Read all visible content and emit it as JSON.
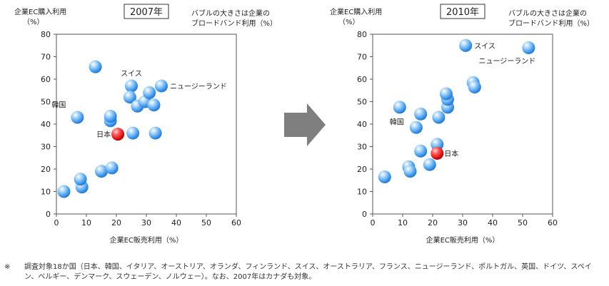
{
  "arrow_color": "#7f7f7f",
  "bubble_color": "#4aa3f0",
  "highlight_color": "#e01010",
  "chart_data": [
    {
      "type": "scatter",
      "title": "2007年",
      "ylabel": "企業EC購入利用\n（%）",
      "xlabel": "企業EC販売利用（%）",
      "size_note": "バブルの大きさは企業の\nブロードバンド利用（%）",
      "xlim": [
        0,
        60
      ],
      "ylim": [
        0,
        80
      ],
      "xticks": [
        0,
        10,
        20,
        30,
        40,
        50,
        60
      ],
      "yticks": [
        0,
        10,
        20,
        30,
        40,
        50,
        60,
        70,
        80
      ],
      "grid": false,
      "points": [
        {
          "x": 2.5,
          "y": 10,
          "label": ""
        },
        {
          "x": 8.5,
          "y": 12,
          "label": ""
        },
        {
          "x": 8,
          "y": 15.5,
          "label": ""
        },
        {
          "x": 15,
          "y": 19,
          "label": ""
        },
        {
          "x": 18.5,
          "y": 20.5,
          "label": ""
        },
        {
          "x": 7,
          "y": 43,
          "label": "韓国"
        },
        {
          "x": 13,
          "y": 65.5,
          "label": ""
        },
        {
          "x": 18,
          "y": 41.5,
          "label": ""
        },
        {
          "x": 18,
          "y": 43.5,
          "label": ""
        },
        {
          "x": 20.5,
          "y": 35.5,
          "label": "日本",
          "highlight": true
        },
        {
          "x": 25.5,
          "y": 36,
          "label": ""
        },
        {
          "x": 33,
          "y": 36,
          "label": ""
        },
        {
          "x": 25,
          "y": 57,
          "label": "スイス"
        },
        {
          "x": 24.5,
          "y": 52,
          "label": ""
        },
        {
          "x": 27,
          "y": 48,
          "label": ""
        },
        {
          "x": 29.5,
          "y": 50,
          "label": ""
        },
        {
          "x": 32.5,
          "y": 48.5,
          "label": ""
        },
        {
          "x": 31,
          "y": 54,
          "label": ""
        },
        {
          "x": 35,
          "y": 57,
          "label": "ニュージーランド"
        }
      ]
    },
    {
      "type": "scatter",
      "title": "2010年",
      "ylabel": "企業EC購入利用\n（%）",
      "xlabel": "企業EC販売利用（%）",
      "size_note": "バブルの大きさは企業の\nブロードバンド利用（%）",
      "xlim": [
        0,
        60
      ],
      "ylim": [
        0,
        80
      ],
      "xticks": [
        0,
        10,
        20,
        30,
        40,
        50,
        60
      ],
      "yticks": [
        0,
        10,
        20,
        30,
        40,
        50,
        60,
        70,
        80
      ],
      "grid": false,
      "points": [
        {
          "x": 4,
          "y": 16.5,
          "label": ""
        },
        {
          "x": 12,
          "y": 21,
          "label": ""
        },
        {
          "x": 12.5,
          "y": 19,
          "label": ""
        },
        {
          "x": 16,
          "y": 28,
          "label": ""
        },
        {
          "x": 19,
          "y": 22,
          "label": ""
        },
        {
          "x": 21.5,
          "y": 31,
          "label": ""
        },
        {
          "x": 21.5,
          "y": 27,
          "label": "日本",
          "highlight": true
        },
        {
          "x": 9,
          "y": 47.5,
          "label": "韓国"
        },
        {
          "x": 14.5,
          "y": 38.5,
          "label": ""
        },
        {
          "x": 16,
          "y": 44.5,
          "label": ""
        },
        {
          "x": 22,
          "y": 43,
          "label": ""
        },
        {
          "x": 25,
          "y": 47.5,
          "label": ""
        },
        {
          "x": 25,
          "y": 51,
          "label": ""
        },
        {
          "x": 24.5,
          "y": 53.5,
          "label": ""
        },
        {
          "x": 33.5,
          "y": 58.5,
          "label": ""
        },
        {
          "x": 34,
          "y": 56.5,
          "label": ""
        },
        {
          "x": 31,
          "y": 75,
          "label": "スイス"
        },
        {
          "x": 52,
          "y": 74,
          "label": "ニュージーランド"
        }
      ]
    }
  ],
  "footnote": {
    "mark": "※",
    "text": "調査対象18か国（日本、韓国、イタリア、オーストリア、オランダ、フィンランド、スイス、オーストラリア、フランス、ニュージーランド、ポルトガル、英国、ドイツ、スペイン、ベルギー、デンマーク、スウェーデン、ノルウェー）。なお、2007年はカナダも対象。"
  }
}
